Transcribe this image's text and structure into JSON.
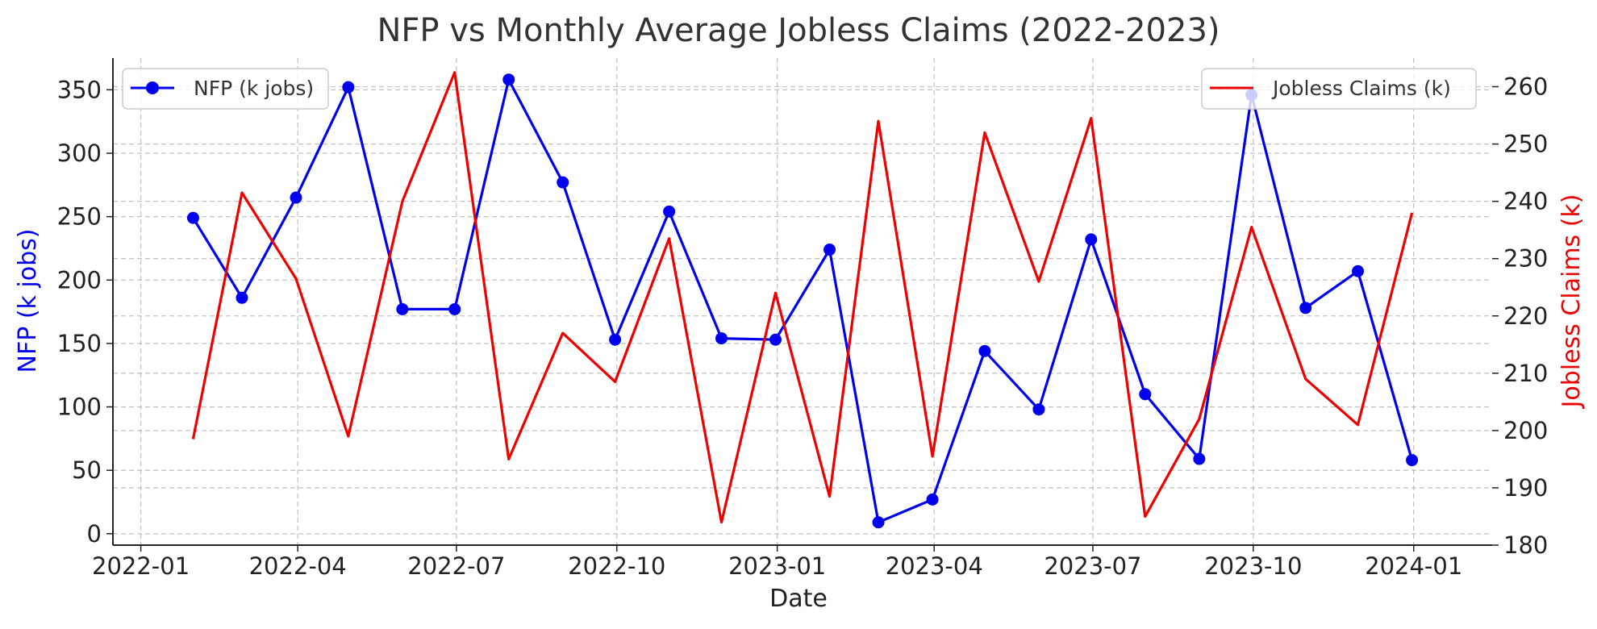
{
  "chart_data": {
    "type": "line",
    "title": "NFP vs Monthly Average Jobless Claims (2022-2023)",
    "xlabel": "Date",
    "ylabel_left": "NFP (k jobs)",
    "ylabel_right": "Jobless Claims (k)",
    "x_ticks": [
      "2022-01",
      "2022-04",
      "2022-07",
      "2022-10",
      "2023-01",
      "2023-04",
      "2023-07",
      "2023-10",
      "2024-01"
    ],
    "y_left_ticks": [
      0,
      50,
      100,
      150,
      200,
      250,
      300,
      350
    ],
    "y_right_ticks": [
      180,
      190,
      200,
      210,
      220,
      230,
      240,
      250,
      260
    ],
    "ylim_left": [
      -9,
      375
    ],
    "ylim_right": [
      180,
      265
    ],
    "xlim": [
      "2021-12-16",
      "2024-02-15"
    ],
    "grid": true,
    "x": [
      "2022-01-31",
      "2022-02-28",
      "2022-03-31",
      "2022-04-30",
      "2022-05-31",
      "2022-06-30",
      "2022-07-31",
      "2022-08-31",
      "2022-09-30",
      "2022-10-31",
      "2022-11-30",
      "2022-12-31",
      "2023-01-31",
      "2023-02-28",
      "2023-03-31",
      "2023-04-30",
      "2023-05-31",
      "2023-06-30",
      "2023-07-31",
      "2023-08-31",
      "2023-09-30",
      "2023-10-31",
      "2023-11-30",
      "2023-12-31"
    ],
    "series": [
      {
        "name": "NFP (k jobs)",
        "axis": "left",
        "color": "#0000ee",
        "marker": "circle",
        "legend": "top-left",
        "values": [
          249,
          186,
          265,
          352,
          177,
          177,
          358,
          277,
          153,
          254,
          154,
          153,
          224,
          9,
          27,
          144,
          98,
          232,
          110,
          59,
          346,
          178,
          207,
          58
        ]
      },
      {
        "name": "Jobless Claims (k)",
        "axis": "right",
        "color": "#ee0000",
        "marker": "none",
        "legend": "top-right",
        "values": [
          198.5,
          241.5,
          226.5,
          199.0,
          240.0,
          262.5,
          195.0,
          217.0,
          208.5,
          233.5,
          184.0,
          224.0,
          188.5,
          254.0,
          195.5,
          252.0,
          226.0,
          254.5,
          185.0,
          202.0,
          235.5,
          209.0,
          201.0,
          238.0
        ]
      }
    ]
  }
}
